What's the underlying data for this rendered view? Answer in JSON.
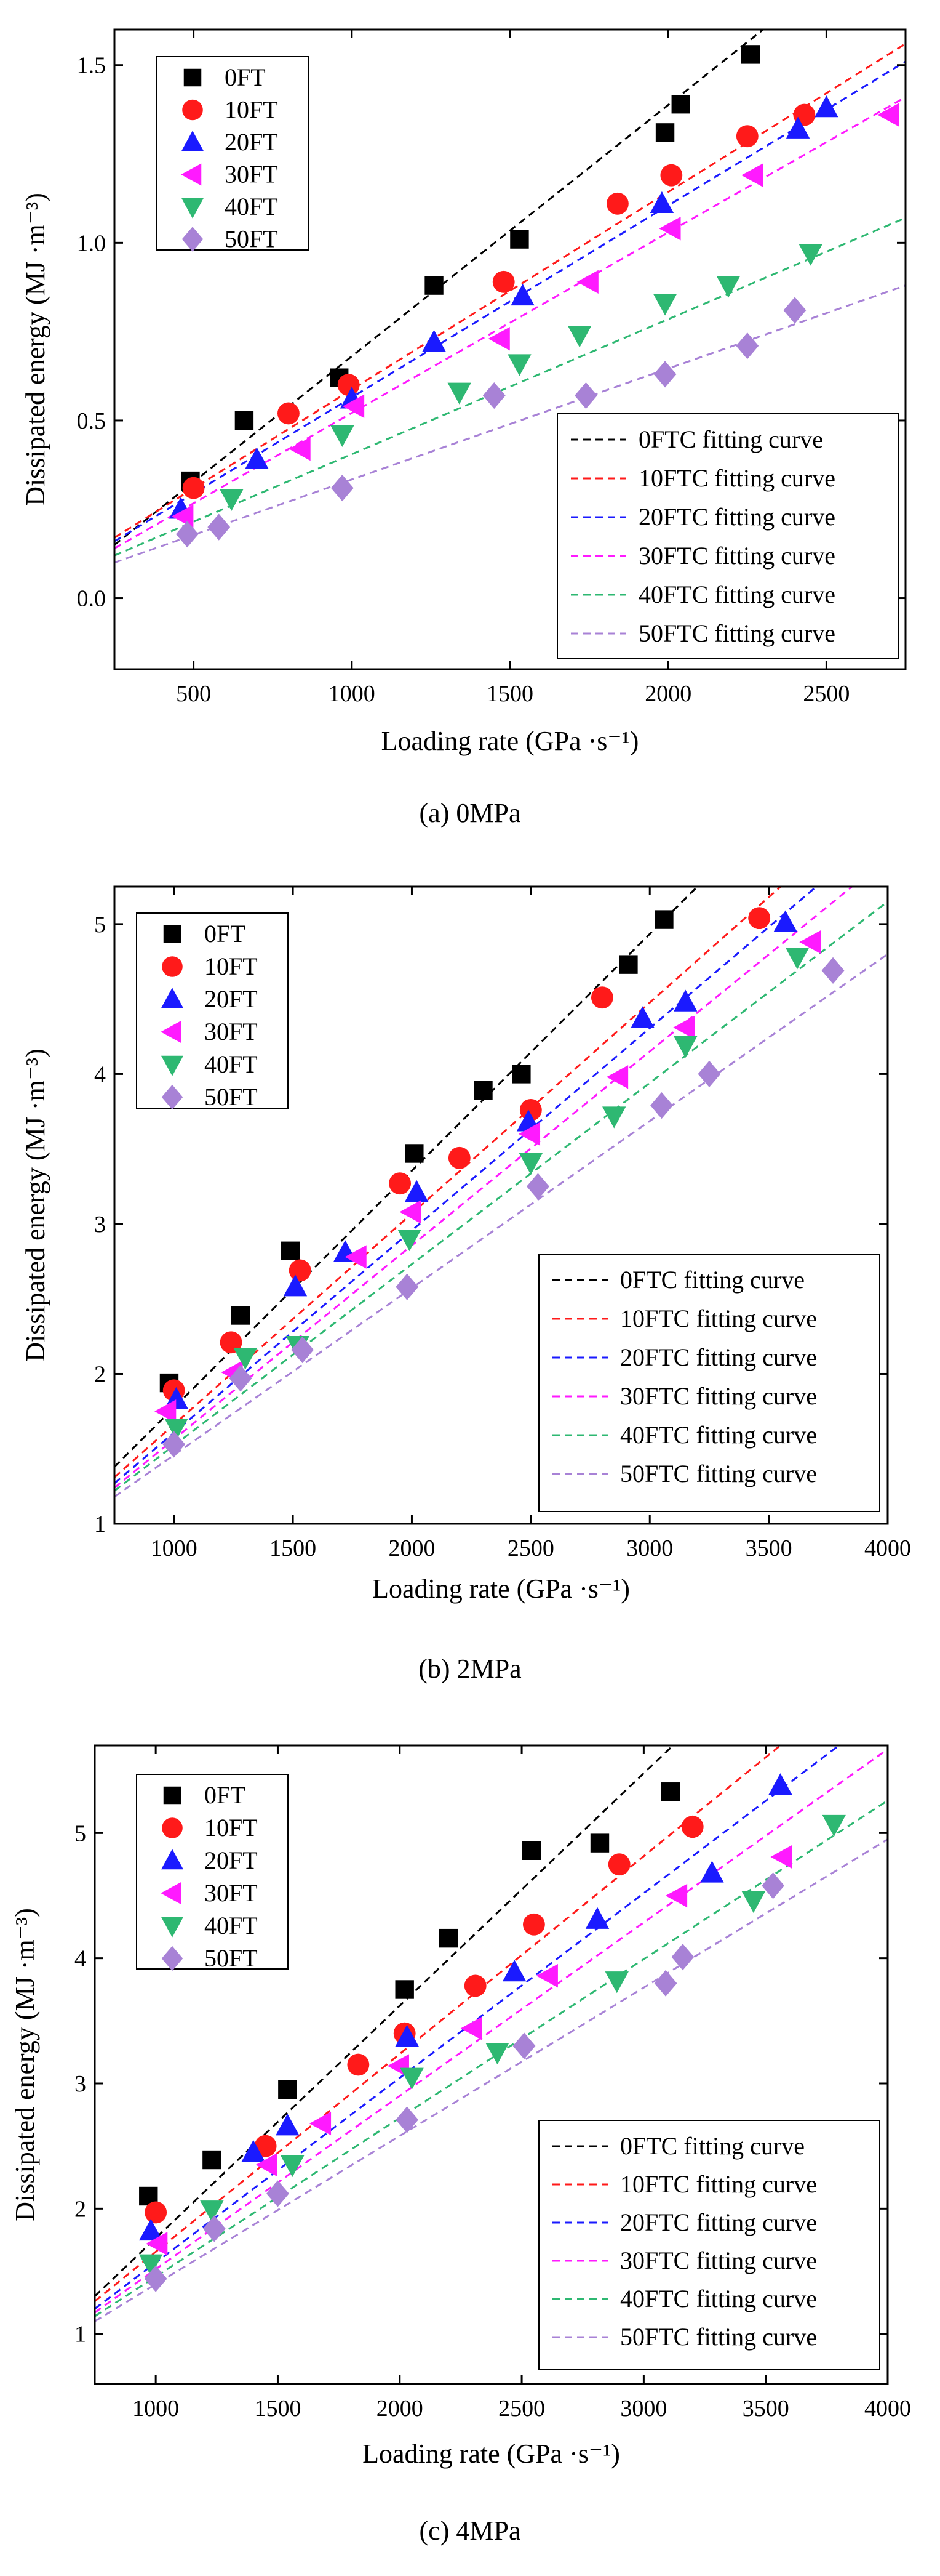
{
  "chart_data": [
    {
      "type": "scatter",
      "caption": "(a) 0MPa",
      "xlabel": "Loading rate (GPa ·s⁻¹)",
      "ylabel": "Dissipated energy (MJ ·m⁻³)",
      "xlim": [
        250,
        2750
      ],
      "ylim": [
        -0.2,
        1.6
      ],
      "xticks": [
        500,
        1000,
        1500,
        2000,
        2500
      ],
      "yticks": [
        0.0,
        0.5,
        1.0,
        1.5
      ],
      "xtick_labels": [
        "500",
        "1000",
        "1500",
        "2000",
        "2500"
      ],
      "ytick_labels": [
        "0.0",
        "0.5",
        "1.0",
        "1.5"
      ],
      "legend_markers": "top-left",
      "legend_fits": "bottom-right",
      "series": [
        {
          "name": "0FT",
          "fit_label": "0FTC fitting curve",
          "marker": "square",
          "color": "#000000",
          "points": [
            [
              490,
              0.33
            ],
            [
              660,
              0.5
            ],
            [
              960,
              0.62
            ],
            [
              1260,
              0.88
            ],
            [
              1530,
              1.01
            ],
            [
              1990,
              1.31
            ],
            [
              2040,
              1.39
            ],
            [
              2260,
              1.53
            ]
          ],
          "fit": [
            [
              250,
              0.15
            ],
            [
              2300,
              1.6
            ]
          ]
        },
        {
          "name": "10FT",
          "fit_label": "10FTC fitting curve",
          "marker": "circle",
          "color": "#ff1a1a",
          "points": [
            [
              500,
              0.31
            ],
            [
              800,
              0.52
            ],
            [
              990,
              0.6
            ],
            [
              1480,
              0.89
            ],
            [
              1840,
              1.11
            ],
            [
              2010,
              1.19
            ],
            [
              2250,
              1.3
            ],
            [
              2430,
              1.36
            ]
          ],
          "fit": [
            [
              250,
              0.17
            ],
            [
              2750,
              1.56
            ]
          ]
        },
        {
          "name": "20FT",
          "fit_label": "20FTC fitting curve",
          "marker": "triangle-up",
          "color": "#1a1aff",
          "points": [
            [
              460,
              0.25
            ],
            [
              700,
              0.39
            ],
            [
              1000,
              0.56
            ],
            [
              1260,
              0.72
            ],
            [
              1540,
              0.85
            ],
            [
              1980,
              1.11
            ],
            [
              2410,
              1.32
            ],
            [
              2500,
              1.38
            ]
          ],
          "fit": [
            [
              250,
              0.16
            ],
            [
              2750,
              1.51
            ]
          ]
        },
        {
          "name": "30FT",
          "fit_label": "30FTC fitting curve",
          "marker": "triangle-left",
          "color": "#ff1aff",
          "points": [
            [
              470,
              0.23
            ],
            [
              840,
              0.42
            ],
            [
              1010,
              0.54
            ],
            [
              1470,
              0.73
            ],
            [
              1750,
              0.89
            ],
            [
              2010,
              1.04
            ],
            [
              2270,
              1.19
            ],
            [
              2700,
              1.36
            ]
          ],
          "fit": [
            [
              250,
              0.14
            ],
            [
              2750,
              1.41
            ]
          ]
        },
        {
          "name": "40FT",
          "fit_label": "40FTC fitting curve",
          "marker": "triangle-down",
          "color": "#2eb872",
          "points": [
            [
              620,
              0.28
            ],
            [
              970,
              0.46
            ],
            [
              1340,
              0.58
            ],
            [
              1530,
              0.66
            ],
            [
              1720,
              0.74
            ],
            [
              1990,
              0.83
            ],
            [
              2190,
              0.88
            ],
            [
              2450,
              0.97
            ]
          ],
          "fit": [
            [
              250,
              0.12
            ],
            [
              2750,
              1.07
            ]
          ]
        },
        {
          "name": "50FT",
          "fit_label": "50FTC fitting curve",
          "marker": "diamond",
          "color": "#a882d6",
          "points": [
            [
              480,
              0.18
            ],
            [
              580,
              0.2
            ],
            [
              970,
              0.31
            ],
            [
              1450,
              0.57
            ],
            [
              1740,
              0.57
            ],
            [
              1990,
              0.63
            ],
            [
              2250,
              0.71
            ],
            [
              2400,
              0.81
            ]
          ],
          "fit": [
            [
              250,
              0.1
            ],
            [
              2750,
              0.88
            ]
          ]
        }
      ]
    },
    {
      "type": "scatter",
      "caption": "(b) 2MPa",
      "xlabel": "Loading rate (GPa ·s⁻¹)",
      "ylabel": "Dissipated energy (MJ ·m⁻³)",
      "xlim": [
        750,
        4000
      ],
      "ylim": [
        1.0,
        5.25
      ],
      "xticks": [
        1000,
        1500,
        2000,
        2500,
        3000,
        3500,
        4000
      ],
      "yticks": [
        1,
        2,
        3,
        4,
        5
      ],
      "xtick_labels": [
        "1000",
        "1500",
        "2000",
        "2500",
        "3000",
        "3500",
        "4000"
      ],
      "ytick_labels": [
        "1",
        "2",
        "3",
        "4",
        "5"
      ],
      "legend_markers": "top-left",
      "legend_fits": "bottom-right",
      "series": [
        {
          "name": "0FT",
          "fit_label": "0FTC fitting curve",
          "marker": "square",
          "color": "#000000",
          "points": [
            [
              980,
              1.94
            ],
            [
              1280,
              2.39
            ],
            [
              1490,
              2.82
            ],
            [
              2010,
              3.47
            ],
            [
              2300,
              3.89
            ],
            [
              2460,
              4.0
            ],
            [
              2910,
              4.73
            ],
            [
              3060,
              5.03
            ]
          ],
          "fit": [
            [
              750,
              1.38
            ],
            [
              3200,
              5.25
            ]
          ]
        },
        {
          "name": "10FT",
          "fit_label": "10FTC fitting curve",
          "marker": "circle",
          "color": "#ff1a1a",
          "points": [
            [
              1000,
              1.89
            ],
            [
              1240,
              2.21
            ],
            [
              1530,
              2.69
            ],
            [
              1950,
              3.27
            ],
            [
              2200,
              3.44
            ],
            [
              2500,
              3.76
            ],
            [
              2800,
              4.51
            ],
            [
              3460,
              5.04
            ]
          ],
          "fit": [
            [
              750,
              1.31
            ],
            [
              3550,
              5.25
            ]
          ]
        },
        {
          "name": "20FT",
          "fit_label": "20FTC fitting curve",
          "marker": "triangle-up",
          "color": "#1a1aff",
          "points": [
            [
              1010,
              1.83
            ],
            [
              1510,
              2.58
            ],
            [
              1720,
              2.81
            ],
            [
              2020,
              3.21
            ],
            [
              2490,
              3.68
            ],
            [
              2970,
              4.37
            ],
            [
              3150,
              4.48
            ],
            [
              3570,
              5.01
            ]
          ],
          "fit": [
            [
              750,
              1.27
            ],
            [
              3700,
              5.25
            ]
          ]
        },
        {
          "name": "30FT",
          "fit_label": "30FTC fitting curve",
          "marker": "triangle-left",
          "color": "#ff1aff",
          "points": [
            [
              970,
              1.75
            ],
            [
              1250,
              2.01
            ],
            [
              1770,
              2.78
            ],
            [
              2000,
              3.08
            ],
            [
              2500,
              3.6
            ],
            [
              2870,
              3.98
            ],
            [
              3150,
              4.31
            ],
            [
              3680,
              4.88
            ]
          ],
          "fit": [
            [
              750,
              1.24
            ],
            [
              3850,
              5.25
            ]
          ]
        },
        {
          "name": "40FT",
          "fit_label": "40FTC fitting curve",
          "marker": "triangle-down",
          "color": "#2eb872",
          "points": [
            [
              1010,
              1.64
            ],
            [
              1300,
              2.11
            ],
            [
              1520,
              2.19
            ],
            [
              1990,
              2.9
            ],
            [
              2500,
              3.41
            ],
            [
              2850,
              3.72
            ],
            [
              3150,
              4.19
            ],
            [
              3620,
              4.78
            ]
          ],
          "fit": [
            [
              750,
              1.22
            ],
            [
              4000,
              5.15
            ]
          ]
        },
        {
          "name": "50FT",
          "fit_label": "50FTC fitting curve",
          "marker": "diamond",
          "color": "#a882d6",
          "points": [
            [
              1000,
              1.53
            ],
            [
              1280,
              1.97
            ],
            [
              1540,
              2.16
            ],
            [
              1980,
              2.58
            ],
            [
              2530,
              3.25
            ],
            [
              3050,
              3.79
            ],
            [
              3250,
              4.0
            ],
            [
              3770,
              4.69
            ]
          ],
          "fit": [
            [
              750,
              1.18
            ],
            [
              4000,
              4.8
            ]
          ]
        }
      ]
    },
    {
      "type": "scatter",
      "caption": "(c) 4MPa",
      "xlabel": "Loading rate (GPa ·s⁻¹)",
      "ylabel": "Dissipated energy (MJ ·m⁻³)",
      "xlim": [
        750,
        4000
      ],
      "ylim": [
        0.6,
        5.7
      ],
      "xticks": [
        1000,
        1500,
        2000,
        2500,
        3000,
        3500,
        4000
      ],
      "yticks": [
        1,
        2,
        3,
        4,
        5
      ],
      "xtick_labels": [
        "1000",
        "1500",
        "2000",
        "2500",
        "3000",
        "3500",
        "4000"
      ],
      "ytick_labels": [
        "1",
        "2",
        "3",
        "4",
        "5"
      ],
      "legend_markers": "top-left",
      "legend_fits": "bottom-right",
      "series": [
        {
          "name": "0FT",
          "fit_label": "0FTC fitting curve",
          "marker": "square",
          "color": "#000000",
          "points": [
            [
              970,
              2.1
            ],
            [
              1230,
              2.39
            ],
            [
              1540,
              2.95
            ],
            [
              2020,
              3.75
            ],
            [
              2200,
              4.16
            ],
            [
              2540,
              4.86
            ],
            [
              2820,
              4.92
            ],
            [
              3110,
              5.33
            ]
          ],
          "fit": [
            [
              750,
              1.3
            ],
            [
              3120,
              5.7
            ]
          ]
        },
        {
          "name": "10FT",
          "fit_label": "10FTC fitting curve",
          "marker": "circle",
          "color": "#ff1a1a",
          "points": [
            [
              1000,
              1.97
            ],
            [
              1450,
              2.5
            ],
            [
              1830,
              3.15
            ],
            [
              2020,
              3.4
            ],
            [
              2310,
              3.78
            ],
            [
              2550,
              4.27
            ],
            [
              2900,
              4.75
            ],
            [
              3200,
              5.05
            ]
          ],
          "fit": [
            [
              750,
              1.26
            ],
            [
              3560,
              5.7
            ]
          ]
        },
        {
          "name": "20FT",
          "fit_label": "20FTC fitting curve",
          "marker": "triangle-up",
          "color": "#1a1aff",
          "points": [
            [
              980,
              1.82
            ],
            [
              1400,
              2.45
            ],
            [
              1540,
              2.66
            ],
            [
              2030,
              3.37
            ],
            [
              2470,
              3.89
            ],
            [
              2810,
              4.31
            ],
            [
              3280,
              4.68
            ],
            [
              3560,
              5.38
            ]
          ],
          "fit": [
            [
              750,
              1.2
            ],
            [
              3800,
              5.7
            ]
          ]
        },
        {
          "name": "30FT",
          "fit_label": "30FTC fitting curve",
          "marker": "triangle-left",
          "color": "#ff1aff",
          "points": [
            [
              1010,
              1.72
            ],
            [
              1460,
              2.35
            ],
            [
              1680,
              2.68
            ],
            [
              2000,
              3.14
            ],
            [
              2300,
              3.44
            ],
            [
              2610,
              3.86
            ],
            [
              3140,
              4.5
            ],
            [
              3570,
              4.81
            ]
          ],
          "fit": [
            [
              750,
              1.17
            ],
            [
              4000,
              5.67
            ]
          ]
        },
        {
          "name": "40FT",
          "fit_label": "40FTC fitting curve",
          "marker": "triangle-down",
          "color": "#2eb872",
          "points": [
            [
              980,
              1.56
            ],
            [
              1230,
              1.99
            ],
            [
              1560,
              2.35
            ],
            [
              2050,
              3.05
            ],
            [
              2400,
              3.25
            ],
            [
              2890,
              3.82
            ],
            [
              3450,
              4.46
            ],
            [
              3780,
              5.07
            ]
          ],
          "fit": [
            [
              750,
              1.14
            ],
            [
              4000,
              5.26
            ]
          ]
        },
        {
          "name": "50FT",
          "fit_label": "50FTC fitting curve",
          "marker": "diamond",
          "color": "#a882d6",
          "points": [
            [
              1000,
              1.44
            ],
            [
              1240,
              1.84
            ],
            [
              1500,
              2.12
            ],
            [
              2030,
              2.71
            ],
            [
              2510,
              3.3
            ],
            [
              3090,
              3.8
            ],
            [
              3160,
              4.01
            ],
            [
              3530,
              4.58
            ]
          ],
          "fit": [
            [
              750,
              1.1
            ],
            [
              4000,
              4.95
            ]
          ]
        }
      ]
    }
  ]
}
